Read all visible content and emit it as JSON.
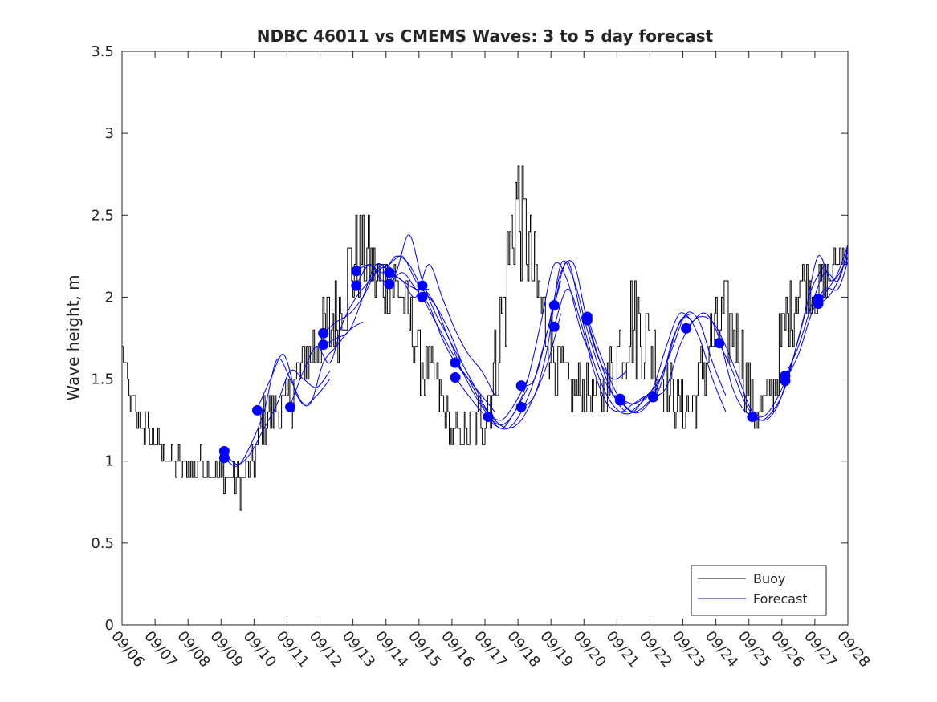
{
  "chart_data": {
    "type": "line",
    "title": "NDBC 46011 vs CMEMS Waves: 3 to 5 day forecast",
    "xlabel": "",
    "ylabel": "Wave height, m",
    "xlim": [
      0,
      22
    ],
    "ylim": [
      0,
      3.5
    ],
    "x_tick_labels": [
      "09/06",
      "09/07",
      "09/08",
      "09/09",
      "09/10",
      "09/11",
      "09/12",
      "09/13",
      "09/14",
      "09/15",
      "09/16",
      "09/17",
      "09/18",
      "09/19",
      "09/20",
      "09/21",
      "09/22",
      "09/23",
      "09/24",
      "09/25",
      "09/26",
      "09/27",
      "09/28"
    ],
    "y_tick_labels": [
      "0",
      "0.5",
      "1",
      "1.5",
      "2",
      "2.5",
      "3",
      "3.5"
    ],
    "y_ticks": [
      0,
      0.5,
      1,
      1.5,
      2,
      2.5,
      3,
      3.5
    ],
    "legend": {
      "position": "bottom-right",
      "entries": [
        "Buoy",
        "Forecast"
      ]
    },
    "colors": {
      "buoy": "#000000",
      "forecast": "#0000ff",
      "axis": "#262626"
    },
    "buoy_envelope": {
      "x": [
        0,
        0.2,
        0.5,
        1,
        1.5,
        2,
        2.5,
        3,
        3.3,
        3.6,
        3.8,
        4,
        4.2,
        4.5,
        4.8,
        5.1,
        5.5,
        6,
        6.5,
        7,
        7.3,
        7.6,
        8,
        8.3,
        8.6,
        8.9,
        9.2,
        9.5,
        9.8,
        10,
        10.3,
        10.6,
        11,
        11.3,
        11.6,
        11.9,
        12.2,
        12.6,
        13,
        13.2,
        13.4,
        13.6,
        13.8,
        14,
        14.2,
        14.4,
        14.6,
        14.8,
        15,
        15.3,
        15.6,
        16,
        16.3,
        16.6,
        17,
        17.3,
        17.6,
        17.9,
        18.2,
        18.5,
        18.7,
        18.9,
        19.2,
        19.5,
        19.8,
        20,
        20.3,
        20.6,
        20.8,
        21,
        21.2,
        21.5,
        21.8,
        22
      ],
      "y": [
        1.65,
        1.4,
        1.25,
        1.1,
        1.0,
        0.97,
        0.97,
        0.92,
        0.9,
        0.87,
        0.9,
        1.0,
        1.2,
        1.3,
        1.3,
        1.4,
        1.6,
        1.75,
        1.9,
        2.2,
        2.25,
        2.15,
        2.1,
        2.05,
        1.95,
        1.7,
        1.55,
        1.45,
        1.3,
        1.15,
        1.15,
        1.2,
        1.3,
        1.6,
        2.0,
        2.6,
        2.4,
        2.0,
        1.7,
        1.55,
        1.5,
        1.45,
        1.45,
        1.45,
        1.4,
        1.4,
        1.45,
        1.5,
        1.65,
        1.85,
        1.85,
        1.7,
        1.55,
        1.4,
        1.3,
        1.35,
        1.55,
        1.75,
        1.85,
        1.8,
        1.7,
        1.5,
        1.3,
        1.35,
        1.5,
        1.75,
        1.95,
        2.1,
        2.05,
        2.0,
        2.05,
        2.15,
        2.25,
        2.3
      ],
      "amplitude": [
        0.1,
        0.1,
        0.12,
        0.1,
        0.1,
        0.1,
        0.1,
        0.1,
        0.12,
        0.15,
        0.15,
        0.15,
        0.15,
        0.15,
        0.15,
        0.2,
        0.2,
        0.25,
        0.3,
        0.3,
        0.3,
        0.25,
        0.25,
        0.25,
        0.2,
        0.2,
        0.2,
        0.2,
        0.15,
        0.12,
        0.12,
        0.15,
        0.2,
        0.3,
        0.4,
        0.45,
        0.35,
        0.3,
        0.25,
        0.2,
        0.2,
        0.15,
        0.15,
        0.15,
        0.15,
        0.15,
        0.2,
        0.25,
        0.3,
        0.35,
        0.35,
        0.3,
        0.25,
        0.2,
        0.15,
        0.15,
        0.2,
        0.25,
        0.3,
        0.3,
        0.25,
        0.2,
        0.15,
        0.15,
        0.2,
        0.25,
        0.25,
        0.2,
        0.2,
        0.15,
        0.15,
        0.1,
        0.1,
        0.1
      ]
    },
    "forecast_runs": [
      {
        "x": [
          3.1,
          3.5,
          3.9,
          4.3,
          4.7,
          5.1,
          5.5,
          5.9,
          6.3
        ],
        "y": [
          1.05,
          0.98,
          1.05,
          1.2,
          1.35,
          1.55,
          1.5,
          1.45,
          1.55
        ]
      },
      {
        "x": [
          3.1,
          3.5,
          3.9,
          4.3,
          4.7,
          5.1,
          5.5,
          5.9,
          6.3
        ],
        "y": [
          1.02,
          0.97,
          1.1,
          1.3,
          1.62,
          1.5,
          1.35,
          1.4,
          1.5
        ]
      },
      {
        "x": [
          4.1,
          4.5,
          4.9,
          5.3,
          5.7,
          6.1,
          6.5,
          6.9,
          7.3
        ],
        "y": [
          1.32,
          1.5,
          1.65,
          1.4,
          1.35,
          1.6,
          1.7,
          1.8,
          1.85
        ]
      },
      {
        "x": [
          5.1,
          5.5,
          5.9,
          6.3,
          6.7,
          7.1,
          7.5,
          7.9,
          8.3
        ],
        "y": [
          1.34,
          1.55,
          1.7,
          1.6,
          1.85,
          2.0,
          2.1,
          2.2,
          2.15
        ]
      },
      {
        "x": [
          6.1,
          6.5,
          6.9,
          7.3,
          7.7,
          8.1,
          8.5,
          8.9,
          9.3
        ],
        "y": [
          1.78,
          1.85,
          1.9,
          2.0,
          2.15,
          2.2,
          2.25,
          2.1,
          2.0
        ]
      },
      {
        "x": [
          6.1,
          6.5,
          6.9,
          7.3,
          7.7,
          8.1,
          8.5,
          8.9,
          9.3
        ],
        "y": [
          1.71,
          1.75,
          1.8,
          2.0,
          2.2,
          2.15,
          2.1,
          2.05,
          2.05
        ]
      },
      {
        "x": [
          7.1,
          7.5,
          7.9,
          8.3,
          8.7,
          9.1,
          9.5,
          9.9,
          10.3
        ],
        "y": [
          2.16,
          2.2,
          2.15,
          2.25,
          2.2,
          2.05,
          1.95,
          1.8,
          1.6
        ]
      },
      {
        "x": [
          7.1,
          7.5,
          7.9,
          8.3,
          8.7,
          9.1,
          9.5,
          9.9,
          10.3
        ],
        "y": [
          2.07,
          2.2,
          2.1,
          2.15,
          2.38,
          2.1,
          1.9,
          1.75,
          1.55
        ]
      },
      {
        "x": [
          8.1,
          8.5,
          8.9,
          9.3,
          9.7,
          10.1,
          10.5,
          10.9,
          11.3
        ],
        "y": [
          2.15,
          2.1,
          2.0,
          2.2,
          2.0,
          1.8,
          1.65,
          1.55,
          1.4
        ]
      },
      {
        "x": [
          8.1,
          8.5,
          8.9,
          9.3,
          9.7,
          10.1,
          10.5,
          10.9,
          11.3
        ],
        "y": [
          2.08,
          2.15,
          2.05,
          1.95,
          1.75,
          1.6,
          1.5,
          1.4,
          1.3
        ]
      },
      {
        "x": [
          9.1,
          9.5,
          9.9,
          10.3,
          10.7,
          11.1,
          11.5,
          11.9,
          12.3
        ],
        "y": [
          2.07,
          1.95,
          1.75,
          1.6,
          1.45,
          1.3,
          1.25,
          1.35,
          1.5
        ]
      },
      {
        "x": [
          9.1,
          9.5,
          9.9,
          10.3,
          10.7,
          11.1,
          11.5,
          11.9,
          12.3
        ],
        "y": [
          2.0,
          1.85,
          1.7,
          1.55,
          1.4,
          1.28,
          1.2,
          1.3,
          1.45
        ]
      },
      {
        "x": [
          10.1,
          10.5,
          10.9,
          11.3,
          11.7,
          12.1,
          12.5,
          12.9,
          13.3
        ],
        "y": [
          1.6,
          1.5,
          1.35,
          1.25,
          1.2,
          1.25,
          1.4,
          1.6,
          1.9
        ]
      },
      {
        "x": [
          10.1,
          10.5,
          10.9,
          11.3,
          11.7,
          12.1,
          12.5,
          12.9,
          13.3
        ],
        "y": [
          1.51,
          1.4,
          1.3,
          1.22,
          1.2,
          1.3,
          1.5,
          1.8,
          2.1
        ]
      },
      {
        "x": [
          11.1,
          11.5,
          11.9,
          12.3,
          12.7,
          13.1,
          13.5,
          13.9,
          14.3
        ],
        "y": [
          1.27,
          1.22,
          1.3,
          1.5,
          1.85,
          2.2,
          2.1,
          1.8,
          1.6
        ]
      },
      {
        "x": [
          12.1,
          12.5,
          12.9,
          13.3,
          13.7,
          14.1,
          14.5,
          14.9,
          15.3
        ],
        "y": [
          1.46,
          1.5,
          1.8,
          2.15,
          2.2,
          1.85,
          1.6,
          1.5,
          1.55
        ]
      },
      {
        "x": [
          12.1,
          12.5,
          12.9,
          13.3,
          13.7,
          14.1,
          14.5,
          14.9,
          15.3
        ],
        "y": [
          1.33,
          1.4,
          1.7,
          2.2,
          2.1,
          1.8,
          1.55,
          1.4,
          1.35
        ]
      },
      {
        "x": [
          13.1,
          13.5,
          13.9,
          14.3,
          14.7,
          15.1,
          15.5,
          15.9,
          16.3
        ],
        "y": [
          1.95,
          2.22,
          1.9,
          1.6,
          1.4,
          1.3,
          1.3,
          1.4,
          1.45
        ]
      },
      {
        "x": [
          13.1,
          13.5,
          13.9,
          14.3,
          14.7,
          15.1,
          15.5,
          15.9,
          16.3
        ],
        "y": [
          1.82,
          2.05,
          1.85,
          1.55,
          1.35,
          1.3,
          1.35,
          1.4,
          1.4
        ]
      },
      {
        "x": [
          14.1,
          14.5,
          14.9,
          15.3,
          15.7,
          16.1,
          16.5,
          16.9,
          17.3
        ],
        "y": [
          1.88,
          1.65,
          1.45,
          1.32,
          1.3,
          1.4,
          1.6,
          1.85,
          1.9
        ]
      },
      {
        "x": [
          14.1,
          14.5,
          14.9,
          15.3,
          15.7,
          16.1,
          16.5,
          16.9,
          17.3
        ],
        "y": [
          1.86,
          1.6,
          1.4,
          1.3,
          1.35,
          1.45,
          1.7,
          1.9,
          1.85
        ]
      },
      {
        "x": [
          15.1,
          15.5,
          15.9,
          16.3,
          16.7,
          17.1,
          17.5,
          17.9,
          18.3
        ],
        "y": [
          1.38,
          1.35,
          1.4,
          1.5,
          1.7,
          1.9,
          1.85,
          1.6,
          1.4
        ]
      },
      {
        "x": [
          15.1,
          15.5,
          15.9,
          16.3,
          16.7,
          17.1,
          17.5,
          17.9,
          18.3
        ],
        "y": [
          1.37,
          1.3,
          1.35,
          1.45,
          1.75,
          1.88,
          1.75,
          1.5,
          1.3
        ]
      },
      {
        "x": [
          16.1,
          16.5,
          16.9,
          17.3,
          17.7,
          18.1,
          18.5,
          18.9,
          19.3
        ],
        "y": [
          1.39,
          1.45,
          1.7,
          1.85,
          1.9,
          1.75,
          1.45,
          1.3,
          1.28
        ]
      },
      {
        "x": [
          17.1,
          17.5,
          17.9,
          18.3,
          18.7,
          19.1,
          19.5,
          19.9,
          20.3
        ],
        "y": [
          1.81,
          1.88,
          1.85,
          1.7,
          1.5,
          1.3,
          1.25,
          1.35,
          1.6
        ]
      },
      {
        "x": [
          18.1,
          18.5,
          18.9,
          19.3,
          19.7,
          20.1,
          20.5,
          20.9,
          21.3
        ],
        "y": [
          1.72,
          1.55,
          1.35,
          1.25,
          1.3,
          1.45,
          1.75,
          2.05,
          2.2
        ]
      },
      {
        "x": [
          19.1,
          19.5,
          19.9,
          20.3,
          20.7,
          21.1,
          21.5,
          21.9,
          22.0
        ],
        "y": [
          1.27,
          1.28,
          1.4,
          1.6,
          1.9,
          2.25,
          2.1,
          2.2,
          2.25
        ]
      },
      {
        "x": [
          20.1,
          20.5,
          20.9,
          21.3,
          21.7,
          22.0
        ],
        "y": [
          1.52,
          1.7,
          1.95,
          2.15,
          2.1,
          2.3
        ]
      },
      {
        "x": [
          20.1,
          20.5,
          20.9,
          21.3,
          21.7,
          22.0
        ],
        "y": [
          1.49,
          1.65,
          1.9,
          2.05,
          2.05,
          2.22
        ]
      },
      {
        "x": [
          21.1,
          21.4,
          21.7,
          22.0
        ],
        "y": [
          1.98,
          2.05,
          2.15,
          2.32
        ]
      },
      {
        "x": [
          21.1,
          21.4,
          21.7,
          22.0
        ],
        "y": [
          1.96,
          2.0,
          2.1,
          2.28
        ]
      }
    ],
    "forecast_points": {
      "x": [
        3.1,
        3.1,
        4.1,
        5.1,
        6.1,
        6.1,
        7.1,
        7.1,
        8.1,
        8.1,
        9.1,
        9.1,
        10.1,
        10.1,
        11.1,
        12.1,
        12.1,
        13.1,
        13.1,
        14.1,
        14.1,
        15.1,
        15.1,
        16.1,
        17.1,
        18.1,
        19.1,
        20.1,
        20.1,
        21.1,
        21.1
      ],
      "y": [
        1.06,
        1.02,
        1.31,
        1.33,
        1.78,
        1.71,
        2.16,
        2.07,
        2.15,
        2.08,
        2.07,
        2.0,
        1.6,
        1.51,
        1.27,
        1.46,
        1.33,
        1.95,
        1.82,
        1.88,
        1.86,
        1.38,
        1.37,
        1.39,
        1.81,
        1.72,
        1.27,
        1.52,
        1.49,
        1.99,
        1.96
      ]
    }
  }
}
